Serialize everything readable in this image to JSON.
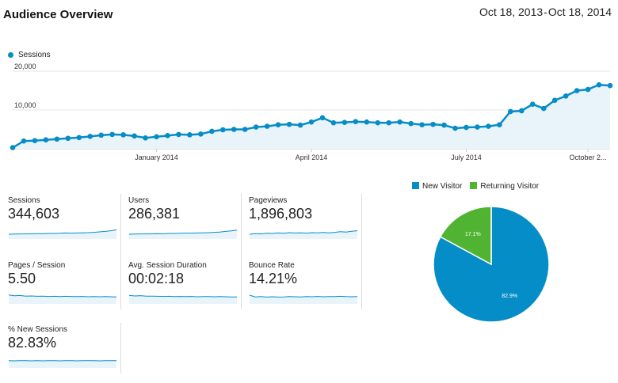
{
  "header": {
    "title": "Audience Overview",
    "date_start": "Oct 18, 2013",
    "date_sep": "-",
    "date_end": "Oct 18, 2014"
  },
  "chart_data": [
    {
      "type": "line",
      "series": [
        {
          "name": "Sessions",
          "values": [
            300,
            2000,
            2100,
            2300,
            2500,
            2700,
            2900,
            3200,
            3500,
            3700,
            3600,
            3300,
            2800,
            3100,
            3400,
            3700,
            3600,
            3800,
            4500,
            4900,
            5000,
            5000,
            5600,
            5800,
            6200,
            6300,
            6100,
            6900,
            8000,
            6700,
            6800,
            7000,
            6900,
            6700,
            6700,
            6900,
            6500,
            6200,
            6300,
            6100,
            5300,
            5500,
            5600,
            5800,
            6200,
            9600,
            9800,
            11500,
            10400,
            12500,
            13600,
            15000,
            15300,
            16500,
            16300
          ]
        }
      ],
      "x_tick_labels": [
        "January 2014",
        "April 2014",
        "July 2014",
        "October 2..."
      ],
      "y_tick_labels": [
        "10,000",
        "20,000"
      ],
      "ylim": [
        0,
        20000
      ]
    },
    {
      "type": "pie",
      "categories": [
        "New Visitor",
        "Returning Visitor"
      ],
      "values": [
        82.9,
        17.1
      ],
      "data_labels": [
        "82.9%",
        "17.1%"
      ],
      "colors": [
        "#058dc7",
        "#50b432"
      ]
    }
  ],
  "metrics": [
    {
      "label": "Sessions",
      "value": "344,603",
      "spark": [
        3,
        3.1,
        3.2,
        3.2,
        3.3,
        3.4,
        3.4,
        3.5,
        3.5,
        3.6,
        3.8,
        3.7,
        3.8,
        3.9,
        4,
        4.2,
        4.5,
        4.8,
        5.2,
        5.8
      ]
    },
    {
      "label": "Users",
      "value": "286,381",
      "spark": [
        3,
        3.1,
        3.2,
        3.2,
        3.3,
        3.4,
        3.3,
        3.5,
        3.5,
        3.6,
        3.7,
        3.7,
        3.8,
        3.9,
        4,
        4.2,
        4.4,
        4.8,
        5.1,
        5.6
      ]
    },
    {
      "label": "Pageviews",
      "value": "1,896,803",
      "spark": [
        3,
        3.4,
        3.2,
        3.6,
        3.5,
        3.8,
        3.6,
        4,
        3.8,
        3.9,
        3.7,
        4,
        3.9,
        4.1,
        3.9,
        4.2,
        4.6,
        4.4,
        4.9,
        5.2
      ]
    },
    {
      "label": "Pages / Session",
      "value": "5.50",
      "spark": [
        5.6,
        5.1,
        5.3,
        4.9,
        5,
        4.8,
        4.9,
        4.7,
        4.8,
        4.6,
        4.8,
        4.7,
        4.6,
        4.7,
        4.5,
        4.6,
        4.5,
        4.6,
        4.5,
        4.4
      ]
    },
    {
      "label": "Avg. Session Duration",
      "value": "00:02:18",
      "spark": [
        5.4,
        5,
        5.2,
        4.9,
        4.9,
        4.8,
        4.7,
        4.8,
        4.6,
        4.7,
        4.6,
        4.7,
        4.5,
        4.6,
        4.6,
        4.5,
        4.6,
        4.5,
        4.4,
        4.4
      ]
    },
    {
      "label": "Bounce Rate",
      "value": "14.21%",
      "spark": [
        5.5,
        4.4,
        4.6,
        4.3,
        4.5,
        4.3,
        4.4,
        4.6,
        4.5,
        4.4,
        4.6,
        4.5,
        4.7,
        4.5,
        4.6,
        4.6,
        4.8,
        4.6,
        4.5,
        4.6
      ]
    },
    {
      "label": "% New Sessions",
      "value": "82.83%",
      "spark": [
        4.6,
        4.5,
        4.6,
        4.6,
        4.5,
        4.6,
        4.5,
        4.6,
        4.6,
        4.5,
        4.6,
        4.6,
        4.5,
        4.6,
        4.6,
        4.6,
        4.5,
        4.6,
        4.6,
        4.6
      ]
    }
  ]
}
